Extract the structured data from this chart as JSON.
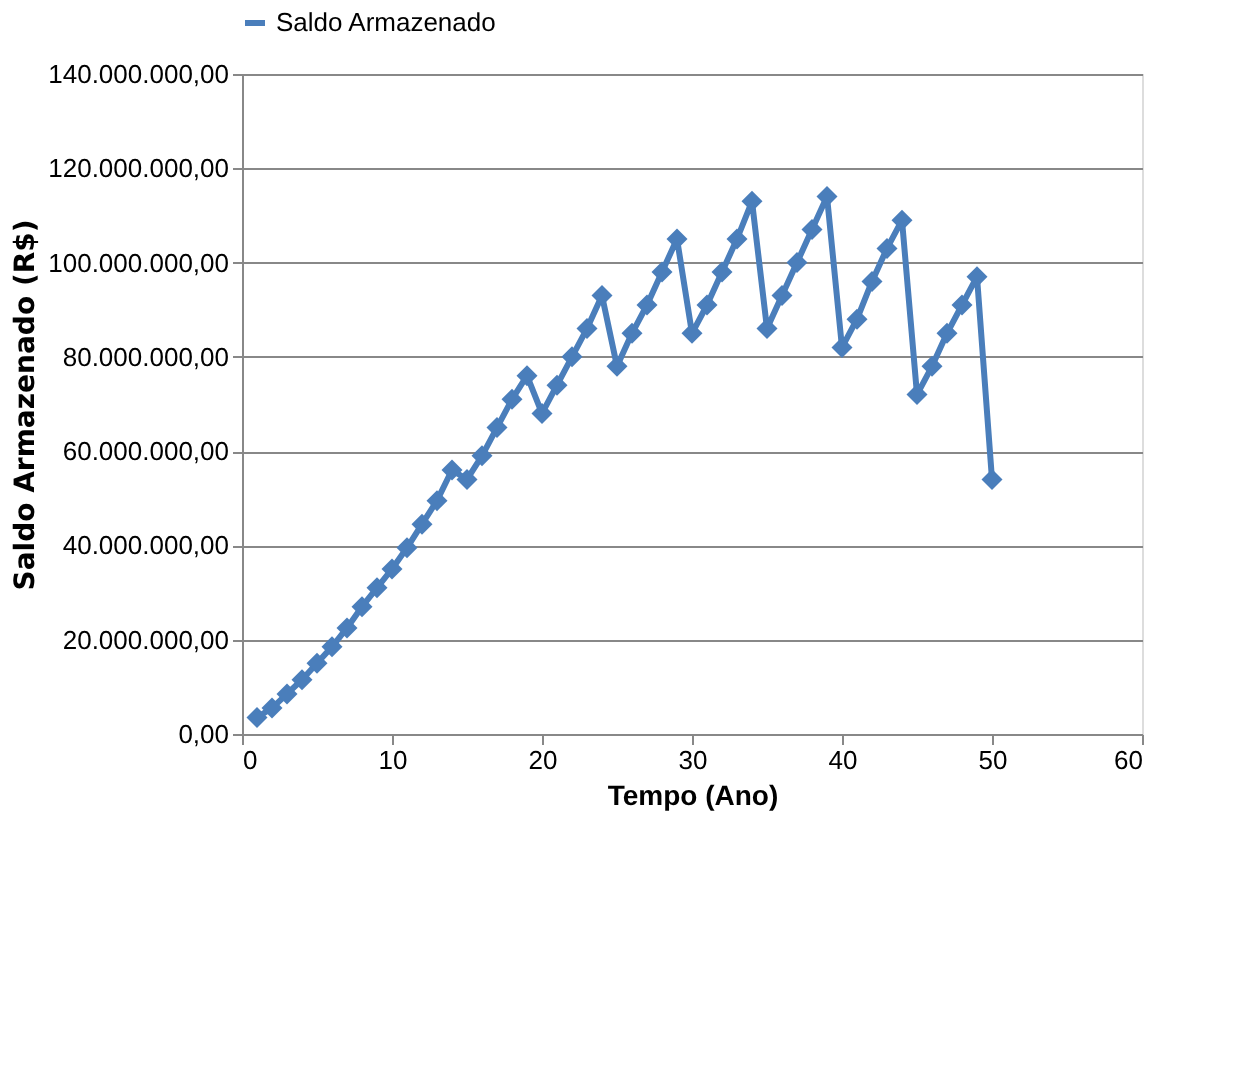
{
  "chart_data": {
    "type": "line",
    "xlabel": "Tempo (Ano)",
    "ylabel": "Saldo Armazenado (R$)",
    "x": [
      1,
      2,
      3,
      4,
      5,
      6,
      7,
      8,
      9,
      10,
      11,
      12,
      13,
      14,
      15,
      16,
      17,
      18,
      19,
      20,
      21,
      22,
      23,
      24,
      25,
      26,
      27,
      28,
      29,
      30,
      31,
      32,
      33,
      34,
      35,
      36,
      37,
      38,
      39,
      40,
      41,
      42,
      43,
      44,
      45,
      46,
      47,
      48,
      49,
      50
    ],
    "series": [
      {
        "name": "Saldo Armazenado",
        "color": "#4a7ebb",
        "values": [
          3500000,
          5500000,
          8500000,
          11500000,
          15000000,
          18500000,
          22500000,
          27000000,
          31000000,
          35000000,
          39500000,
          44500000,
          49500000,
          56000000,
          54000000,
          59000000,
          65000000,
          71000000,
          76000000,
          68000000,
          74000000,
          80000000,
          86000000,
          93000000,
          78000000,
          85000000,
          91000000,
          98000000,
          105000000,
          85000000,
          91000000,
          98000000,
          105000000,
          113000000,
          86000000,
          93000000,
          100000000,
          107000000,
          114000000,
          82000000,
          88000000,
          96000000,
          103000000,
          109000000,
          72000000,
          78000000,
          85000000,
          91000000,
          97000000,
          54000000
        ]
      }
    ],
    "xlim": [
      0,
      60
    ],
    "xticks": [
      0,
      10,
      20,
      30,
      40,
      50,
      60
    ],
    "ylim": [
      0,
      140000000
    ],
    "yticks": [
      {
        "value": 0,
        "label": "0,00"
      },
      {
        "value": 20000000,
        "label": "20.000.000,00"
      },
      {
        "value": 40000000,
        "label": "40.000.000,00"
      },
      {
        "value": 60000000,
        "label": "60.000.000,00"
      },
      {
        "value": 80000000,
        "label": "80.000.000,00"
      },
      {
        "value": 100000000,
        "label": "100.000.000,00"
      },
      {
        "value": 120000000,
        "label": "120.000.000,00"
      },
      {
        "value": 140000000,
        "label": "140.000.000,00"
      }
    ],
    "grid": "y",
    "legend": "top",
    "marker": "diamond",
    "line_style": "solid"
  }
}
